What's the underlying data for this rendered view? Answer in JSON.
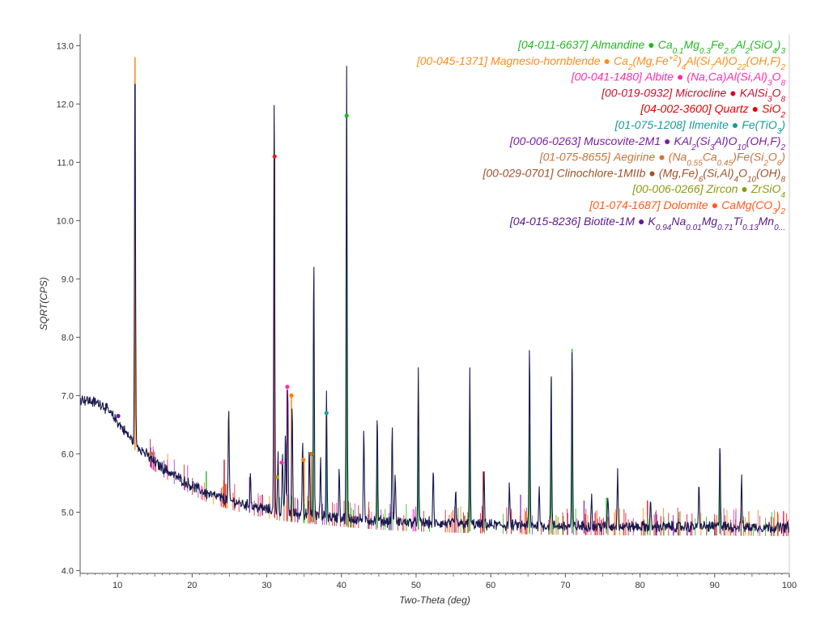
{
  "chart_data": {
    "type": "line",
    "title": "",
    "xlabel": "Two-Theta (deg)",
    "ylabel": "SQRT(CPS)",
    "xlim": [
      5,
      100
    ],
    "ylim": [
      3.95,
      13.2
    ],
    "grid": false,
    "legend_position": "top-right",
    "x_ticks": [
      10,
      20,
      30,
      40,
      50,
      60,
      70,
      80,
      90,
      100
    ],
    "x_tick_labels": [
      "10",
      "20",
      "30",
      "40",
      "50",
      "60",
      "70",
      "80",
      "90",
      "100"
    ],
    "y_ticks": [
      4,
      5,
      6,
      7,
      8,
      9,
      10,
      11,
      12,
      13
    ],
    "y_tick_labels": [
      "4.0",
      "5.0",
      "6.0",
      "7.0",
      "8.0",
      "9.0",
      "10.0",
      "11.0",
      "12.0",
      "13.0"
    ],
    "background_profile": [
      [
        5,
        6.95
      ],
      [
        8,
        6.85
      ],
      [
        10,
        6.55
      ],
      [
        11.5,
        6.3
      ],
      [
        13,
        6.1
      ],
      [
        15,
        5.85
      ],
      [
        18,
        5.6
      ],
      [
        20,
        5.45
      ],
      [
        22,
        5.32
      ],
      [
        25,
        5.2
      ],
      [
        28,
        5.1
      ],
      [
        32,
        5.0
      ],
      [
        36,
        4.95
      ],
      [
        40,
        4.9
      ],
      [
        45,
        4.85
      ],
      [
        50,
        4.82
      ],
      [
        60,
        4.78
      ],
      [
        70,
        4.76
      ],
      [
        80,
        4.75
      ],
      [
        90,
        4.75
      ],
      [
        100,
        4.74
      ]
    ],
    "scan_color": "#1a1a4e",
    "peaks": [
      {
        "x": 12.35,
        "y": 13.0,
        "color": "#ff7f00"
      },
      {
        "x": 24.9,
        "y": 6.8,
        "color": "#c8102e"
      },
      {
        "x": 27.8,
        "y": 5.7,
        "color": "#1a1a4e"
      },
      {
        "x": 31.0,
        "y": 12.3,
        "color": "#e02020"
      },
      {
        "x": 31.5,
        "y": 6.0,
        "color": "#b03030"
      },
      {
        "x": 32.1,
        "y": 6.0,
        "color": "#9b30d0"
      },
      {
        "x": 32.5,
        "y": 6.4,
        "color": "#1a1a4e"
      },
      {
        "x": 32.8,
        "y": 7.25,
        "color": "#1a1a4e"
      },
      {
        "x": 33.4,
        "y": 6.9,
        "color": "#1a1a4e"
      },
      {
        "x": 34.8,
        "y": 6.3,
        "color": "#1a1a4e"
      },
      {
        "x": 35.7,
        "y": 6.15,
        "color": "#1a1a4e"
      },
      {
        "x": 36.3,
        "y": 9.4,
        "color": "#1a1a4e"
      },
      {
        "x": 37.2,
        "y": 5.9,
        "color": "#1a1a4e"
      },
      {
        "x": 38.0,
        "y": 7.05,
        "color": "#1a1a4e"
      },
      {
        "x": 39.7,
        "y": 5.8,
        "color": "#1a1a4e"
      },
      {
        "x": 40.7,
        "y": 12.65,
        "color": "#1a1a4e"
      },
      {
        "x": 43.0,
        "y": 6.4,
        "color": "#1a1a4e"
      },
      {
        "x": 44.8,
        "y": 6.6,
        "color": "#1a1a4e"
      },
      {
        "x": 46.8,
        "y": 6.5,
        "color": "#1a1a4e"
      },
      {
        "x": 47.2,
        "y": 5.7,
        "color": "#1a1a4e"
      },
      {
        "x": 50.3,
        "y": 7.4,
        "color": "#1a1a4e"
      },
      {
        "x": 52.3,
        "y": 5.7,
        "color": "#1a1a4e"
      },
      {
        "x": 55.3,
        "y": 5.4,
        "color": "#1a1a4e"
      },
      {
        "x": 57.2,
        "y": 7.4,
        "color": "#1a1a4e"
      },
      {
        "x": 59.1,
        "y": 5.75,
        "color": "#c8102e"
      },
      {
        "x": 62.5,
        "y": 5.5,
        "color": "#1a1a4e"
      },
      {
        "x": 65.2,
        "y": 7.9,
        "color": "#1a1a4e"
      },
      {
        "x": 66.5,
        "y": 5.5,
        "color": "#1a1a4e"
      },
      {
        "x": 68.1,
        "y": 7.4,
        "color": "#1a1a4e"
      },
      {
        "x": 70.9,
        "y": 7.85,
        "color": "#1a1a4e"
      },
      {
        "x": 73.5,
        "y": 5.3,
        "color": "#1a1a4e"
      },
      {
        "x": 75.7,
        "y": 5.3,
        "color": "#1a1a4e"
      },
      {
        "x": 77.0,
        "y": 5.8,
        "color": "#1a1a4e"
      },
      {
        "x": 81.4,
        "y": 5.2,
        "color": "#c8102e"
      },
      {
        "x": 87.9,
        "y": 5.5,
        "color": "#1a1a4e"
      },
      {
        "x": 90.7,
        "y": 6.25,
        "color": "#1a1a4e"
      },
      {
        "x": 93.6,
        "y": 5.6,
        "color": "#1a1a4e"
      }
    ],
    "phase_sticks": [
      {
        "x": 12.35,
        "y": 12.8,
        "color": "#ff7f00"
      },
      {
        "x": 31.05,
        "y": 11.1,
        "color": "#e02020"
      },
      {
        "x": 40.7,
        "y": 11.8,
        "color": "#22b822"
      },
      {
        "x": 36.25,
        "y": 7.9,
        "color": "#22b822"
      },
      {
        "x": 44.8,
        "y": 6.5,
        "color": "#22b822"
      },
      {
        "x": 50.3,
        "y": 6.3,
        "color": "#22b822"
      },
      {
        "x": 57.2,
        "y": 6.5,
        "color": "#22b822"
      },
      {
        "x": 65.2,
        "y": 6.5,
        "color": "#22b822"
      },
      {
        "x": 68.1,
        "y": 7.3,
        "color": "#22b822"
      },
      {
        "x": 70.9,
        "y": 7.8,
        "color": "#22b822"
      },
      {
        "x": 90.7,
        "y": 6.1,
        "color": "#22b822"
      },
      {
        "x": 24.3,
        "y": 5.9,
        "color": "#c8102e"
      },
      {
        "x": 21.9,
        "y": 5.7,
        "color": "#22b822"
      },
      {
        "x": 27.7,
        "y": 5.6,
        "color": "#9b30d0"
      },
      {
        "x": 29.4,
        "y": 5.3,
        "color": "#c8102e"
      },
      {
        "x": 32.7,
        "y": 7.1,
        "color": "#ff2bb0"
      },
      {
        "x": 33.3,
        "y": 7.0,
        "color": "#ff7f00"
      },
      {
        "x": 38.0,
        "y": 6.7,
        "color": "#20a0a0"
      },
      {
        "x": 35.0,
        "y": 5.9,
        "color": "#ff7f00"
      },
      {
        "x": 35.95,
        "y": 6.0,
        "color": "#c07030"
      },
      {
        "x": 59.0,
        "y": 5.7,
        "color": "#e02020"
      },
      {
        "x": 64.0,
        "y": 5.3,
        "color": "#9b30d0"
      },
      {
        "x": 72.5,
        "y": 5.2,
        "color": "#9b30d0"
      },
      {
        "x": 75.5,
        "y": 5.25,
        "color": "#22b822"
      },
      {
        "x": 81.0,
        "y": 5.2,
        "color": "#e02020"
      }
    ],
    "markers": [
      {
        "x": 31.05,
        "y": 11.1,
        "color": "#e02020"
      },
      {
        "x": 40.7,
        "y": 11.8,
        "color": "#22b822"
      },
      {
        "x": 32.75,
        "y": 7.15,
        "color": "#ff2bb0"
      },
      {
        "x": 33.3,
        "y": 7.0,
        "color": "#ff7f00"
      },
      {
        "x": 38.0,
        "y": 6.7,
        "color": "#20a0a0"
      },
      {
        "x": 10.1,
        "y": 6.65,
        "color": "#6a1b9a"
      },
      {
        "x": 14.5,
        "y": 6.0,
        "color": "#c07030"
      },
      {
        "x": 35.95,
        "y": 6.0,
        "color": "#c07030"
      },
      {
        "x": 34.9,
        "y": 5.9,
        "color": "#ff7f00"
      },
      {
        "x": 31.4,
        "y": 5.6,
        "color": "#9aa61a"
      },
      {
        "x": 32.0,
        "y": 5.85,
        "color": "#ff2bb0"
      }
    ],
    "legend": [
      {
        "code": "[04-011-6637]",
        "name": "Almandine",
        "color": "#22b822",
        "formula": [
          [
            "Ca",
            ""
          ],
          [
            "0.1",
            "sub"
          ],
          [
            "Mg",
            ""
          ],
          [
            "0.3",
            "sub"
          ],
          [
            "Fe",
            ""
          ],
          [
            "2.6",
            "sub"
          ],
          [
            "Al",
            ""
          ],
          [
            "2",
            "sub"
          ],
          [
            "(SiO",
            ""
          ],
          [
            "4",
            "sub"
          ],
          [
            ")",
            ""
          ],
          [
            "3",
            "sub"
          ]
        ]
      },
      {
        "code": "[00-045-1371]",
        "name": "Magnesio-hornblende",
        "color": "#ff8c1a",
        "formula": [
          [
            "Ca",
            ""
          ],
          [
            "2",
            "sub"
          ],
          [
            "(Mg,Fe",
            ""
          ],
          [
            "+2",
            "sup"
          ],
          [
            ")",
            ""
          ],
          [
            "4",
            "sub"
          ],
          [
            "Al(Si",
            ""
          ],
          [
            "7",
            "sub"
          ],
          [
            "Al)O",
            ""
          ],
          [
            "22",
            "sub"
          ],
          [
            "(OH,F)",
            ""
          ],
          [
            "2",
            "sub"
          ]
        ]
      },
      {
        "code": "[00-041-1480]",
        "name": "Albite",
        "color": "#ff2bb0",
        "formula": [
          [
            "(Na,Ca)Al(Si,Al)",
            ""
          ],
          [
            "3",
            "sub"
          ],
          [
            "O",
            ""
          ],
          [
            "8",
            "sub"
          ]
        ]
      },
      {
        "code": "[00-019-0932]",
        "name": "Microcline",
        "color": "#c8102e",
        "formula": [
          [
            "KAlSi",
            ""
          ],
          [
            "3",
            "sub"
          ],
          [
            "O",
            ""
          ],
          [
            "8",
            "sub"
          ]
        ]
      },
      {
        "code": "[04-002-3600]",
        "name": "Quartz",
        "color": "#e60000",
        "formula": [
          [
            "SiO",
            ""
          ],
          [
            "2",
            "sub"
          ]
        ]
      },
      {
        "code": "[01-075-1208]",
        "name": "Ilmenite",
        "color": "#1a9a9a",
        "formula": [
          [
            "Fe(TiO",
            ""
          ],
          [
            "3",
            "sub"
          ],
          [
            ")",
            ""
          ]
        ]
      },
      {
        "code": "[00-006-0263]",
        "name": "Muscovite-2M1",
        "color": "#7b1fa2",
        "formula": [
          [
            "KAl",
            ""
          ],
          [
            "2",
            "sub"
          ],
          [
            "(Si",
            ""
          ],
          [
            "3",
            "sub"
          ],
          [
            "Al)O",
            ""
          ],
          [
            "10",
            "sub"
          ],
          [
            "(OH,F)",
            ""
          ],
          [
            "2",
            "sub"
          ]
        ]
      },
      {
        "code": "[01-075-8655]",
        "name": "Aegirine",
        "color": "#c8743a",
        "formula": [
          [
            "(Na",
            ""
          ],
          [
            "0.55",
            "sub"
          ],
          [
            "Ca",
            ""
          ],
          [
            "0.45",
            "sub"
          ],
          [
            ")Fe(Si",
            ""
          ],
          [
            "2",
            "sub"
          ],
          [
            "O",
            ""
          ],
          [
            "6",
            "sub"
          ],
          [
            ")",
            ""
          ]
        ]
      },
      {
        "code": "[00-029-0701]",
        "name": "Clinochlore-1MIIb",
        "color": "#a0522d",
        "formula": [
          [
            "(Mg,Fe)",
            ""
          ],
          [
            "6",
            "sub"
          ],
          [
            "(Si,Al)",
            ""
          ],
          [
            "4",
            "sub"
          ],
          [
            "O",
            ""
          ],
          [
            "10",
            "sub"
          ],
          [
            "(OH)",
            ""
          ],
          [
            "8",
            "sub"
          ]
        ]
      },
      {
        "code": "[00-006-0266]",
        "name": "Zircon",
        "color": "#8a9a10",
        "formula": [
          [
            "ZrSiO",
            ""
          ],
          [
            "4",
            "sub"
          ]
        ]
      },
      {
        "code": "[01-074-1687]",
        "name": "Dolomite",
        "color": "#ff5a1a",
        "formula": [
          [
            "CaMg(CO",
            ""
          ],
          [
            "3",
            "sub"
          ],
          [
            ")",
            ""
          ],
          [
            "2",
            "sub"
          ]
        ]
      },
      {
        "code": "[04-015-8236]",
        "name": "Biotite-1M",
        "color": "#5a1a8a",
        "formula": [
          [
            "K",
            ""
          ],
          [
            "0.94",
            "sub"
          ],
          [
            "Na",
            ""
          ],
          [
            "0.01",
            "sub"
          ],
          [
            "Mg",
            ""
          ],
          [
            "0.71",
            "sub"
          ],
          [
            "Ti",
            ""
          ],
          [
            "0.13",
            "sub"
          ],
          [
            "Mn",
            ""
          ],
          [
            "0...",
            "sub"
          ]
        ]
      }
    ]
  }
}
